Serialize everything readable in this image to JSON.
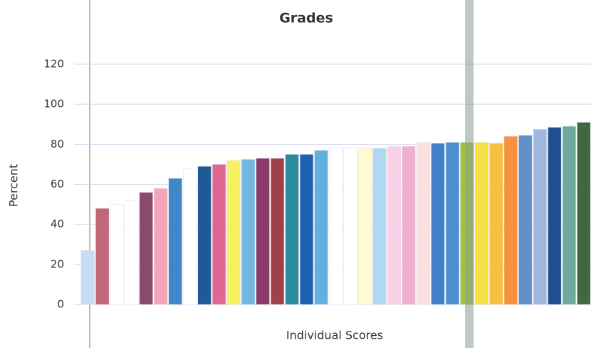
{
  "chart_data": {
    "type": "bar",
    "title": "Grades",
    "x_label": "Individual Scores",
    "y_label": "Percent",
    "categories": [
      null,
      null,
      null,
      null,
      null,
      null,
      null,
      null,
      null,
      null,
      null,
      null,
      null,
      null,
      null,
      null,
      null,
      null,
      null,
      null,
      null,
      null,
      null,
      null,
      null,
      null,
      null,
      null,
      null,
      null,
      null,
      null,
      null,
      null,
      null
    ],
    "values": [
      27,
      48,
      50,
      52,
      56,
      58,
      63,
      68,
      69,
      70,
      72,
      72.5,
      73,
      73,
      75,
      75,
      77,
      78,
      78,
      78,
      78,
      79,
      79,
      81,
      80.5,
      81,
      81,
      81,
      80.5,
      84,
      84.5,
      87.5,
      88.5,
      89,
      91
    ],
    "colors": [
      "#c8dcf4",
      "#c06878",
      "#ffffff",
      "#ffffff",
      "#8b4a6b",
      "#f4a6b8",
      "#3f87c8",
      "#ffffff",
      "#1f5a96",
      "#e06890",
      "#f8f060",
      "#70b8e0",
      "#8b3a6a",
      "#a04048",
      "#2a8aa0",
      "#2060b0",
      "#60b0e0",
      "#ffffff",
      "#ffffff",
      "#fffbd0",
      "#b0d8f0",
      "#f8d0e8",
      "#f0b0d0",
      "#fde0e0",
      "#4080c8",
      "#4a90d0",
      "#a0c040",
      "#f8e040",
      "#f8c040",
      "#f89040",
      "#6090c8",
      "#a0b8e0",
      "#1f4f90",
      "#70a8a0",
      "#3f6a40"
    ],
    "ylim": [
      0,
      120
    ],
    "yticks": [
      0,
      20,
      40,
      60,
      80,
      100,
      120
    ],
    "grid": true
  }
}
